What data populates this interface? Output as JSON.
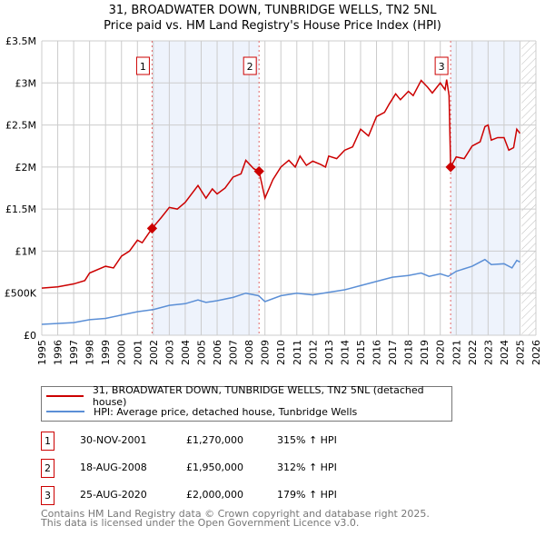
{
  "chart_data": {
    "type": "line",
    "title": "31, BROADWATER DOWN, TUNBRIDGE WELLS, TN2 5NL",
    "subtitle": "Price paid vs. HM Land Registry's House Price Index (HPI)",
    "xlim": [
      1995,
      2026
    ],
    "ylim": [
      0,
      3500000
    ],
    "x_ticks": [
      "1995",
      "1996",
      "1997",
      "1998",
      "1999",
      "2000",
      "2001",
      "2002",
      "2003",
      "2004",
      "2005",
      "2006",
      "2007",
      "2008",
      "2009",
      "2010",
      "2011",
      "2012",
      "2013",
      "2014",
      "2015",
      "2016",
      "2017",
      "2018",
      "2019",
      "2020",
      "2021",
      "2022",
      "2023",
      "2024",
      "2025",
      "2026"
    ],
    "y_ticks": [
      {
        "v": 0,
        "label": "£0"
      },
      {
        "v": 500000,
        "label": "£500K"
      },
      {
        "v": 1000000,
        "label": "£1M"
      },
      {
        "v": 1500000,
        "label": "£1.5M"
      },
      {
        "v": 2000000,
        "label": "£2M"
      },
      {
        "v": 2500000,
        "label": "£2.5M"
      },
      {
        "v": 3000000,
        "label": "£3M"
      },
      {
        "v": 3500000,
        "label": "£3.5M"
      }
    ],
    "grid": true,
    "shaded_periods": [
      [
        2001.92,
        2008.63
      ],
      [
        2020.65,
        2025.0
      ]
    ],
    "hatched_from": 2025.1,
    "series": [
      {
        "name": "31, BROADWATER DOWN, TUNBRIDGE WELLS, TN2 5NL (detached house)",
        "color": "#cc0000",
        "points": [
          [
            1995,
            560000
          ],
          [
            1996,
            575000
          ],
          [
            1997,
            610000
          ],
          [
            1997.7,
            650000
          ],
          [
            1998,
            740000
          ],
          [
            1999,
            820000
          ],
          [
            1999.5,
            800000
          ],
          [
            2000,
            940000
          ],
          [
            2000.5,
            1000000
          ],
          [
            2001,
            1130000
          ],
          [
            2001.3,
            1100000
          ],
          [
            2001.92,
            1270000
          ],
          [
            2002.5,
            1400000
          ],
          [
            2003,
            1520000
          ],
          [
            2003.5,
            1500000
          ],
          [
            2004,
            1580000
          ],
          [
            2004.8,
            1780000
          ],
          [
            2005.3,
            1630000
          ],
          [
            2005.7,
            1740000
          ],
          [
            2006,
            1680000
          ],
          [
            2006.5,
            1750000
          ],
          [
            2007,
            1880000
          ],
          [
            2007.5,
            1920000
          ],
          [
            2007.8,
            2080000
          ],
          [
            2008.3,
            1980000
          ],
          [
            2008.63,
            1950000
          ],
          [
            2009,
            1630000
          ],
          [
            2009.5,
            1850000
          ],
          [
            2010,
            2000000
          ],
          [
            2010.5,
            2080000
          ],
          [
            2010.9,
            2000000
          ],
          [
            2011.2,
            2130000
          ],
          [
            2011.6,
            2020000
          ],
          [
            2012,
            2070000
          ],
          [
            2012.5,
            2030000
          ],
          [
            2012.8,
            2000000
          ],
          [
            2013,
            2130000
          ],
          [
            2013.5,
            2100000
          ],
          [
            2014,
            2200000
          ],
          [
            2014.5,
            2240000
          ],
          [
            2015,
            2450000
          ],
          [
            2015.5,
            2370000
          ],
          [
            2016,
            2600000
          ],
          [
            2016.5,
            2650000
          ],
          [
            2016.8,
            2750000
          ],
          [
            2017.2,
            2870000
          ],
          [
            2017.5,
            2800000
          ],
          [
            2018,
            2900000
          ],
          [
            2018.3,
            2850000
          ],
          [
            2018.8,
            3030000
          ],
          [
            2019.2,
            2950000
          ],
          [
            2019.5,
            2880000
          ],
          [
            2020,
            3000000
          ],
          [
            2020.3,
            2920000
          ],
          [
            2020.4,
            3040000
          ],
          [
            2020.55,
            2850000
          ],
          [
            2020.65,
            2000000
          ],
          [
            2021,
            2120000
          ],
          [
            2021.5,
            2100000
          ],
          [
            2022,
            2250000
          ],
          [
            2022.5,
            2300000
          ],
          [
            2022.8,
            2480000
          ],
          [
            2023,
            2500000
          ],
          [
            2023.2,
            2320000
          ],
          [
            2023.6,
            2350000
          ],
          [
            2024,
            2350000
          ],
          [
            2024.3,
            2200000
          ],
          [
            2024.6,
            2230000
          ],
          [
            2024.8,
            2450000
          ],
          [
            2025,
            2400000
          ]
        ]
      },
      {
        "name": "HPI: Average price, detached house, Tunbridge Wells",
        "color": "#5b8fd6",
        "points": [
          [
            1995,
            130000
          ],
          [
            1997,
            150000
          ],
          [
            1998,
            185000
          ],
          [
            1999,
            200000
          ],
          [
            2000,
            240000
          ],
          [
            2001,
            280000
          ],
          [
            2002,
            305000
          ],
          [
            2003,
            355000
          ],
          [
            2004,
            375000
          ],
          [
            2004.8,
            420000
          ],
          [
            2005.3,
            390000
          ],
          [
            2006,
            410000
          ],
          [
            2007,
            450000
          ],
          [
            2007.8,
            500000
          ],
          [
            2008.6,
            470000
          ],
          [
            2009,
            400000
          ],
          [
            2010,
            470000
          ],
          [
            2011,
            500000
          ],
          [
            2012,
            480000
          ],
          [
            2013,
            510000
          ],
          [
            2014,
            540000
          ],
          [
            2015,
            590000
          ],
          [
            2016,
            640000
          ],
          [
            2017,
            690000
          ],
          [
            2018,
            710000
          ],
          [
            2018.8,
            740000
          ],
          [
            2019.3,
            700000
          ],
          [
            2020,
            730000
          ],
          [
            2020.5,
            700000
          ],
          [
            2021,
            760000
          ],
          [
            2022,
            820000
          ],
          [
            2022.8,
            900000
          ],
          [
            2023.2,
            840000
          ],
          [
            2024,
            850000
          ],
          [
            2024.5,
            800000
          ],
          [
            2024.8,
            890000
          ],
          [
            2025,
            870000
          ]
        ]
      }
    ],
    "sales": [
      {
        "n": "1",
        "x": 2001.92,
        "y": 1270000,
        "date": "30-NOV-2001",
        "price": "£1,270,000",
        "hpi": "315% ↑ HPI"
      },
      {
        "n": "2",
        "x": 2008.63,
        "y": 1950000,
        "date": "18-AUG-2008",
        "price": "£1,950,000",
        "hpi": "312% ↑ HPI"
      },
      {
        "n": "3",
        "x": 2020.65,
        "y": 2000000,
        "date": "25-AUG-2020",
        "price": "£2,000,000",
        "hpi": "179% ↑ HPI"
      }
    ]
  },
  "footer": {
    "line1": "Contains HM Land Registry data © Crown copyright and database right 2025.",
    "line2": "This data is licensed under the Open Government Licence v3.0."
  }
}
